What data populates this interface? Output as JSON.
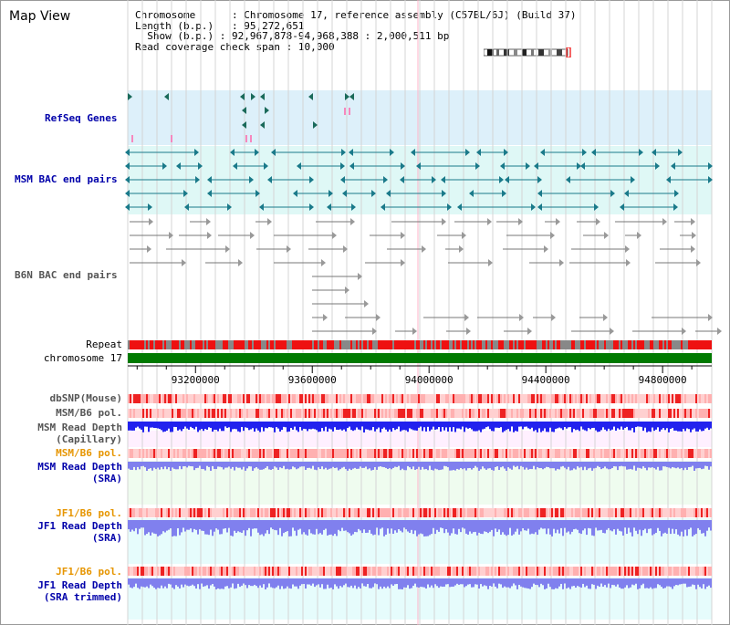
{
  "title": "Map View",
  "info": {
    "chromosome_label": "Chromosome",
    "chromosome_value": "Chromosome 17, reference assembly (C57BL/6J) (Build 37)",
    "length_label": "Length (b.p.)",
    "length_value": "95,272,651",
    "show_label": "Show (b.p.)",
    "show_value": "92,967,878-94,968,388 : 2,000,511 bp",
    "span_label": "Read coverage check span",
    "span_value": "10,000"
  },
  "tracks": {
    "refseq": "RefSeq Genes",
    "msm_bac": "MSM BAC end pairs",
    "b6n_bac": "B6N BAC end pairs",
    "repeat": "Repeat",
    "chromosome": "chromosome 17",
    "dbsnp": "dbSNP(Mouse)",
    "msm_b6_pol_1": "MSM/B6 pol.",
    "msm_depth_cap_1": "MSM Read Depth",
    "msm_depth_cap_2": "(Capillary)",
    "msm_b6_pol_2": "MSM/B6 pol.",
    "msm_depth_sra_1": "MSM Read Depth",
    "msm_depth_sra_2": "(SRA)",
    "jf1_b6_pol_1": "JF1/B6 pol.",
    "jf1_depth_sra_1": "JF1 Read Depth",
    "jf1_depth_sra_2": "(SRA)",
    "jf1_b6_pol_2": "JF1/B6 pol.",
    "jf1_depth_trim_1": "JF1 Read Depth",
    "jf1_depth_trim_2": "(SRA trimmed)"
  },
  "axis": {
    "ticks": [
      "93200000",
      "93600000",
      "94000000",
      "94400000",
      "94800000"
    ],
    "range": [
      92967878,
      94968388
    ]
  },
  "colors": {
    "refseq_bg": "#ddf0fa",
    "msm_bg": "#dff8f6",
    "chromosome_bar": "#007a00",
    "repeat_red": "#ee1111",
    "repeat_gray": "#888888",
    "snp_pink": "#ffb0b0",
    "snp_red": "#ee2222",
    "depth_blue": "#2222ee",
    "depth_light": "#8080ee",
    "track_bg_pink": "#fff0ff",
    "track_bg_green": "#effcef",
    "track_bg_cyan": "#e6fcfc",
    "gene_teal": "#1a7a8a",
    "bac_gray": "#777777"
  }
}
